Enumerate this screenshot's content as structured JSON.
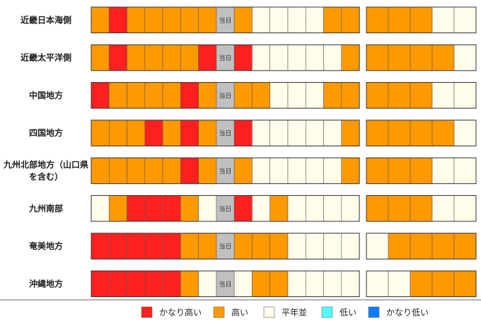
{
  "chart_data": {
    "type": "heatmap",
    "today_label": "当日",
    "today_index": 7,
    "colors": {
      "かなり高い": "#ff2020",
      "高い": "#ff9900",
      "平年並": "#fffcea",
      "低い": "#55ffff",
      "かなり低い": "#0a7dff",
      "当日": "#c0c0c0"
    },
    "legend": [
      {
        "label": "かなり高い",
        "color": "#ff2020"
      },
      {
        "label": "高い",
        "color": "#ff9900"
      },
      {
        "label": "平年並",
        "color": "#fffcea"
      },
      {
        "label": "低い",
        "color": "#55ffff"
      },
      {
        "label": "かなり低い",
        "color": "#0a7dff"
      }
    ],
    "rows": [
      {
        "label": [
          "近畿日本海側"
        ],
        "daily": [
          "高い",
          "かなり高い",
          "高い",
          "高い",
          "高い",
          "高い",
          "高い",
          "当日",
          "高い",
          "平年並",
          "平年並",
          "平年並",
          "平年並",
          "高い",
          "高い"
        ],
        "weekly": [
          "高い",
          "高い",
          "高い",
          "平年並",
          "平年並"
        ]
      },
      {
        "label": [
          "近畿太平洋側"
        ],
        "daily": [
          "高い",
          "かなり高い",
          "高い",
          "高い",
          "高い",
          "高い",
          "かなり高い",
          "当日",
          "かなり高い",
          "平年並",
          "平年並",
          "平年並",
          "平年並",
          "平年並",
          "高い"
        ],
        "weekly": [
          "高い",
          "高い",
          "高い",
          "高い",
          "平年並"
        ]
      },
      {
        "label": [
          "中国地方"
        ],
        "daily": [
          "かなり高い",
          "高い",
          "高い",
          "高い",
          "高い",
          "かなり高い",
          "高い",
          "当日",
          "高い",
          "高い",
          "平年並",
          "平年並",
          "平年並",
          "高い",
          "高い"
        ],
        "weekly": [
          "高い",
          "高い",
          "高い",
          "平年並",
          "平年並"
        ]
      },
      {
        "label": [
          "四国地方"
        ],
        "daily": [
          "高い",
          "高い",
          "高い",
          "かなり高い",
          "高い",
          "かなり高い",
          "高い",
          "当日",
          "かなり高い",
          "平年並",
          "平年並",
          "平年並",
          "平年並",
          "平年並",
          "高い"
        ],
        "weekly": [
          "高い",
          "高い",
          "高い",
          "高い",
          "平年並"
        ]
      },
      {
        "label": [
          "九州北部地方（山口県",
          "を含む）"
        ],
        "daily": [
          "高い",
          "高い",
          "高い",
          "高い",
          "高い",
          "かなり高い",
          "高い",
          "当日",
          "高い",
          "平年並",
          "平年並",
          "平年並",
          "平年並",
          "平年並",
          "高い"
        ],
        "weekly": [
          "高い",
          "高い",
          "高い",
          "平年並",
          "平年並"
        ]
      },
      {
        "label": [
          "九州南部"
        ],
        "daily": [
          "平年並",
          "高い",
          "かなり高い",
          "かなり高い",
          "かなり高い",
          "高い",
          "平年並",
          "当日",
          "かなり高い",
          "平年並",
          "高い",
          "平年並",
          "平年並",
          "平年並",
          "平年並"
        ],
        "weekly": [
          "高い",
          "高い",
          "高い",
          "平年並",
          "平年並"
        ]
      },
      {
        "label": [
          "奄美地方"
        ],
        "daily": [
          "かなり高い",
          "かなり高い",
          "かなり高い",
          "かなり高い",
          "かなり高い",
          "高い",
          "高い",
          "当日",
          "高い",
          "高い",
          "高い",
          "平年並",
          "平年並",
          "平年並",
          "平年並"
        ],
        "weekly": [
          "平年並",
          "高い",
          "高い",
          "高い",
          "高い"
        ]
      },
      {
        "label": [
          "沖縄地方"
        ],
        "daily": [
          "かなり高い",
          "かなり高い",
          "かなり高い",
          "かなり高い",
          "かなり高い",
          "高い",
          "平年並",
          "当日",
          "平年並",
          "高い",
          "高い",
          "平年並",
          "平年並",
          "平年並",
          "平年並"
        ],
        "weekly": [
          "平年並",
          "平年並",
          "高い",
          "高い",
          "高い"
        ]
      }
    ]
  }
}
